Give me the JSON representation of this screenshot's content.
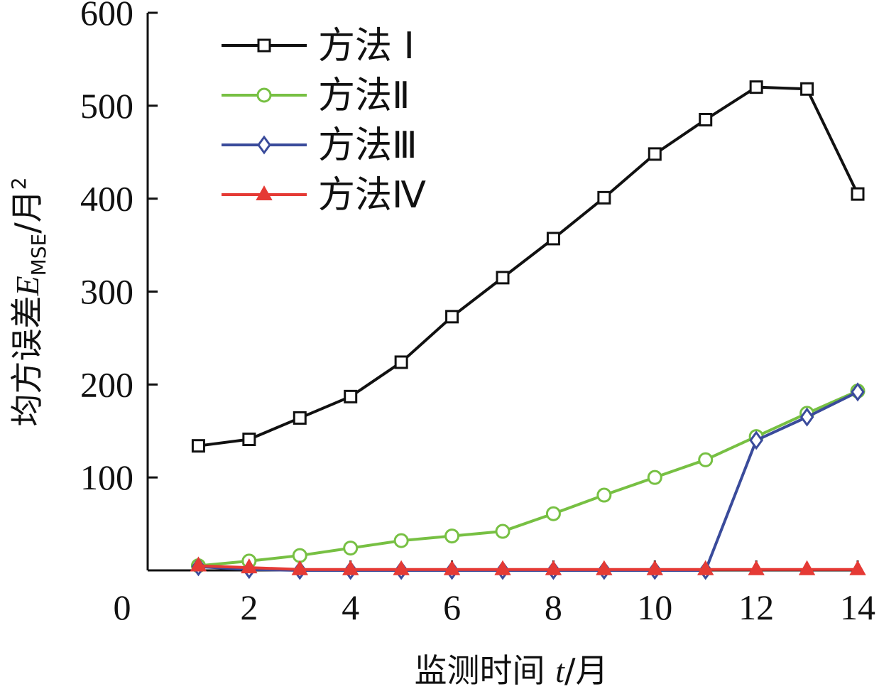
{
  "chart_data": {
    "type": "line",
    "xlabel": "监测时间 t/月",
    "ylabel": "均方误差E_MSE/月²",
    "ylabel_parts": {
      "prefix": "均方误差",
      "symbol": "E",
      "subscript": "MSE",
      "unit": "/月",
      "sup": "2"
    },
    "xlabel_parts": {
      "prefix": "监测时间 ",
      "symbol": "t",
      "unit": "/月"
    },
    "origin_label": "0",
    "xlim": [
      0,
      14
    ],
    "ylim": [
      0,
      600
    ],
    "x_ticks": [
      2,
      4,
      6,
      8,
      10,
      12,
      14
    ],
    "y_ticks": [
      100,
      200,
      300,
      400,
      500,
      600
    ],
    "x": [
      1,
      2,
      3,
      4,
      5,
      6,
      7,
      8,
      9,
      10,
      11,
      12,
      13,
      14
    ],
    "legend_position": "top-left",
    "grid": false,
    "series": [
      {
        "name": "方法 Ⅰ",
        "color": "#111111",
        "marker": "square",
        "values": [
          134,
          141,
          164,
          187,
          224,
          273,
          315,
          357,
          401,
          448,
          485,
          520,
          518,
          405
        ]
      },
      {
        "name": "方法Ⅱ",
        "color": "#77c043",
        "marker": "circle",
        "values": [
          5,
          10,
          16,
          24,
          32,
          37,
          42,
          61,
          81,
          100,
          119,
          144,
          169,
          193
        ]
      },
      {
        "name": "方法Ⅲ",
        "color": "#3a4b9b",
        "marker": "diamond",
        "values": [
          4,
          1,
          0,
          0,
          0,
          0,
          0,
          0,
          0,
          0,
          0,
          140,
          165,
          192
        ]
      },
      {
        "name": "方法Ⅳ",
        "color": "#e53a35",
        "marker": "triangle",
        "values": [
          5,
          3,
          1,
          1,
          1,
          1,
          1,
          1,
          1,
          1,
          1,
          1,
          1,
          1
        ]
      }
    ]
  }
}
